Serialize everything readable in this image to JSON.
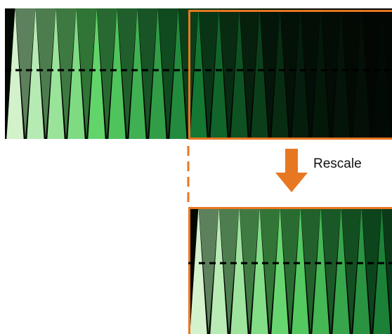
{
  "label": "Rescale"
}
